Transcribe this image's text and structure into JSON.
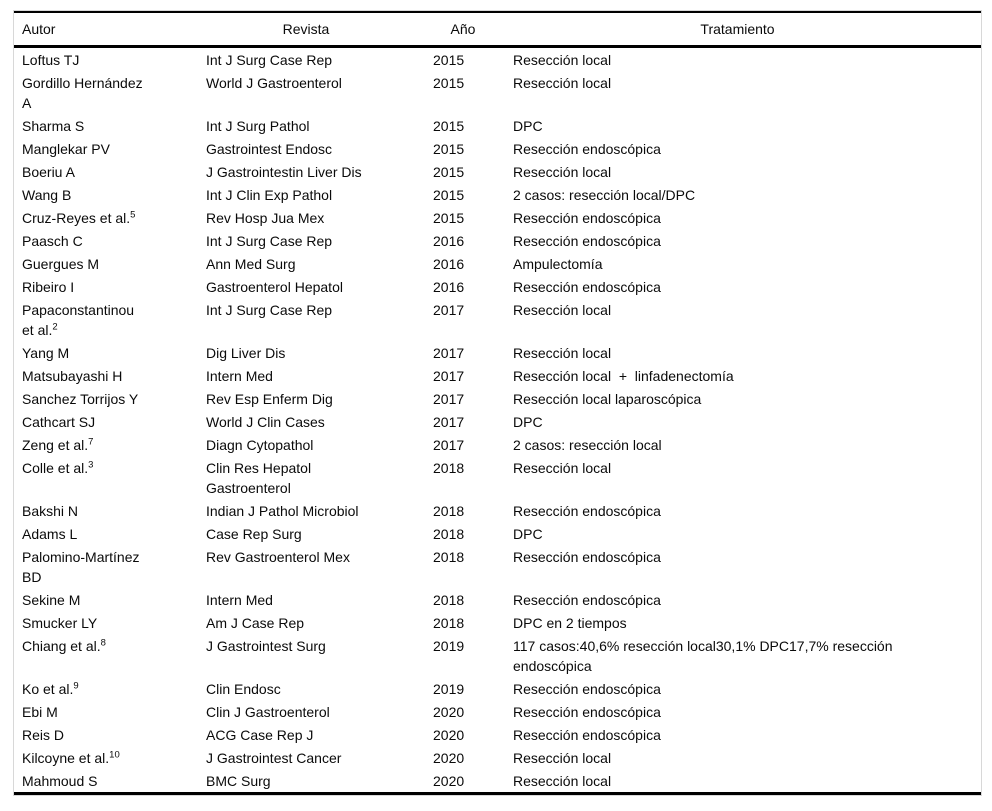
{
  "table": {
    "columns": [
      {
        "key": "autor",
        "label": "Autor"
      },
      {
        "key": "revista",
        "label": "Revista"
      },
      {
        "key": "ano",
        "label": "Año"
      },
      {
        "key": "tratamiento",
        "label": "Tratamiento"
      }
    ],
    "rows": [
      {
        "autor": "Loftus TJ",
        "revista": "Int J Surg Case Rep",
        "ano": "2015",
        "tratamiento": "Resección local"
      },
      {
        "autor": "Gordillo Hernández A",
        "revista": "World J Gastroenterol",
        "ano": "2015",
        "tratamiento": "Resección local"
      },
      {
        "autor": "Sharma S",
        "revista": "Int J Surg Pathol",
        "ano": "2015",
        "tratamiento": "DPC"
      },
      {
        "autor": "Manglekar PV",
        "revista": "Gastrointest Endosc",
        "ano": "2015",
        "tratamiento": "Resección endoscópica"
      },
      {
        "autor": "Boeriu A",
        "revista": "J Gastrointestin Liver Dis",
        "ano": "2015",
        "tratamiento": "Resección local"
      },
      {
        "autor": "Wang B",
        "revista": "Int J Clin Exp Pathol",
        "ano": "2015",
        "tratamiento": "2 casos: resección local/DPC"
      },
      {
        "autor": "Cruz-Reyes et al.",
        "autor_sup": "5",
        "revista": "Rev Hosp Jua Mex",
        "ano": "2015",
        "tratamiento": "Resección endoscópica"
      },
      {
        "autor": "Paasch C",
        "revista": "Int J Surg Case Rep",
        "ano": "2016",
        "tratamiento": "Resección endoscópica"
      },
      {
        "autor": "Guergues M",
        "revista": "Ann Med Surg",
        "ano": "2016",
        "tratamiento": "Ampulectomía"
      },
      {
        "autor": "Ribeiro I",
        "revista": "Gastroenterol Hepatol",
        "ano": "2016",
        "tratamiento": "Resección endoscópica"
      },
      {
        "autor": "Papaconstantinou et al.",
        "autor_sup": "2",
        "revista": "Int J Surg Case Rep",
        "ano": "2017",
        "tratamiento": "Resección local"
      },
      {
        "autor": "Yang M",
        "revista": "Dig Liver Dis",
        "ano": "2017",
        "tratamiento": "Resección local"
      },
      {
        "autor": "Matsubayashi H",
        "revista": "Intern Med",
        "ano": "2017",
        "tratamiento": "Resección local  +  linfadenectomía"
      },
      {
        "autor": "Sanchez Torrijos Y",
        "revista": "Rev Esp Enferm Dig",
        "ano": "2017",
        "tratamiento": "Resección local laparoscópica"
      },
      {
        "autor": "Cathcart SJ",
        "revista": "World J Clin Cases",
        "ano": "2017",
        "tratamiento": "DPC"
      },
      {
        "autor": "Zeng et al.",
        "autor_sup": "7",
        "revista": "Diagn Cytopathol",
        "ano": "2017",
        "tratamiento": "2 casos: resección local"
      },
      {
        "autor": "Colle et al.",
        "autor_sup": "3",
        "revista": "Clin Res Hepatol Gastroenterol",
        "ano": "2018",
        "tratamiento": "Resección local"
      },
      {
        "autor": "Bakshi N",
        "revista": "Indian J Pathol Microbiol",
        "ano": "2018",
        "tratamiento": "Resección endoscópica"
      },
      {
        "autor": "Adams L",
        "revista": "Case Rep Surg",
        "ano": "2018",
        "tratamiento": "DPC"
      },
      {
        "autor": "Palomino-Martínez BD",
        "revista": "Rev Gastroenterol Mex",
        "ano": "2018",
        "tratamiento": "Resección endoscópica"
      },
      {
        "autor": "Sekine M",
        "revista": "Intern Med",
        "ano": "2018",
        "tratamiento": "Resección endoscópica"
      },
      {
        "autor": "Smucker LY",
        "revista": "Am J Case Rep",
        "ano": "2018",
        "tratamiento": "DPC en 2 tiempos"
      },
      {
        "autor": "Chiang et al.",
        "autor_sup": "8",
        "revista": "J Gastrointest Surg",
        "ano": "2019",
        "tratamiento": "117 casos:40,6% resección local30,1% DPC17,7% resección endoscópica"
      },
      {
        "autor": "Ko et al.",
        "autor_sup": "9",
        "revista": "Clin Endosc",
        "ano": "2019",
        "tratamiento": "Resección endoscópica"
      },
      {
        "autor": "Ebi M",
        "revista": "Clin J Gastroenterol",
        "ano": "2020",
        "tratamiento": "Resección endoscópica"
      },
      {
        "autor": "Reis D",
        "revista": "ACG Case Rep J",
        "ano": "2020",
        "tratamiento": "Resección endoscópica"
      },
      {
        "autor": "Kilcoyne et al.",
        "autor_sup": "10",
        "revista": "J Gastrointest Cancer",
        "ano": "2020",
        "tratamiento": "Resección local"
      },
      {
        "autor": "Mahmoud S",
        "revista": "BMC Surg",
        "ano": "2020",
        "tratamiento": "Resección local"
      }
    ],
    "colors": {
      "rule": "#000000",
      "frame_border": "#d8d8d8",
      "text": "#0a0a0a",
      "background": "#ffffff"
    }
  }
}
